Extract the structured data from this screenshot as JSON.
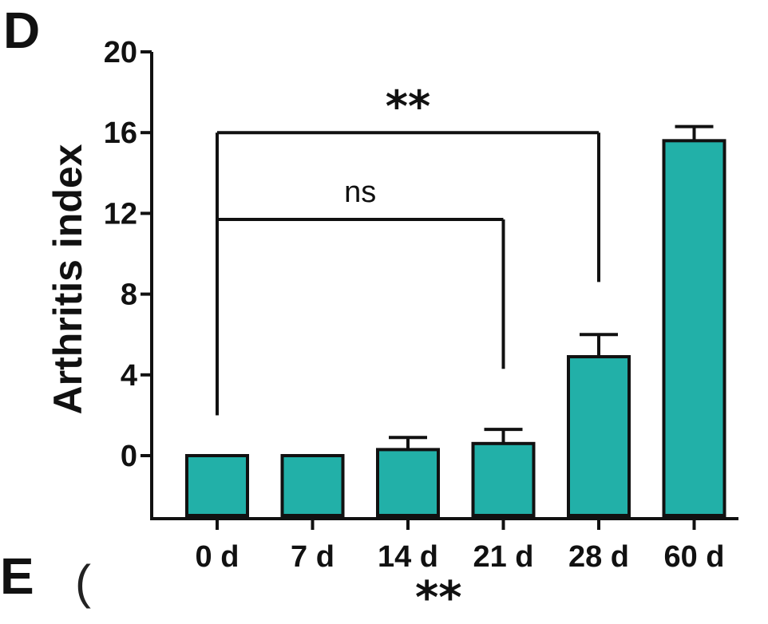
{
  "panel_labels": {
    "current": "D",
    "next": "E"
  },
  "bottom_fragment": {
    "left_mark": "(",
    "stars": "**"
  },
  "colors": {
    "bar_fill": "#22b0a8",
    "stroke": "#111111"
  },
  "chart_data": {
    "type": "bar",
    "title": "",
    "xlabel": "",
    "ylabel": "Arthritis index",
    "categories": [
      "0 d",
      "7 d",
      "14 d",
      "21 d",
      "28 d",
      "60 d"
    ],
    "values": [
      0,
      0,
      0.3,
      0.6,
      4.9,
      15.6
    ],
    "errors": [
      0,
      0,
      0.6,
      0.7,
      1.1,
      0.7
    ],
    "ylim": [
      -3,
      20
    ],
    "yticks": [
      "0",
      "4",
      "8",
      "12",
      "16",
      "20"
    ],
    "ytick_values": [
      0,
      4,
      8,
      12,
      16,
      20
    ],
    "grid": false,
    "annotations": [
      {
        "label": "ns",
        "from": 0,
        "to": 3,
        "level": 11.7,
        "left_drop_to": 2.0,
        "right_drop_to": 4.3
      },
      {
        "label": "**",
        "from": 0,
        "to": 4,
        "level": 16.0,
        "left_drop_to": 2.0,
        "right_drop_to": 8.6
      }
    ]
  }
}
